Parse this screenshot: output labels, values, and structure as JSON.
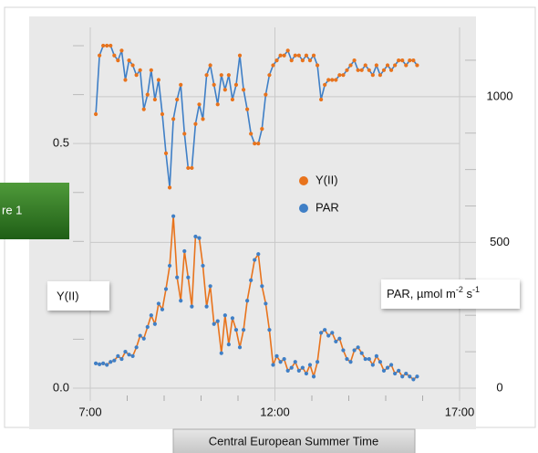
{
  "tab_label": "re 1",
  "chart_data": {
    "type": "line",
    "xlabel": "Central European Summer Time",
    "ylabel": "Y(II)",
    "y2label": [
      "PAR, µmol m",
      "-2",
      " s",
      "-1"
    ],
    "xlim": [
      7,
      17
    ],
    "xticks": [
      {
        "value": 7,
        "label": "7:00"
      },
      {
        "value": 12,
        "label": "12:00"
      },
      {
        "value": 17,
        "label": "17:00"
      }
    ],
    "xminorticks": [
      8,
      9,
      10,
      11,
      13,
      14,
      15,
      16
    ],
    "ylim": [
      0,
      0.715
    ],
    "yticks": [
      {
        "value": 0,
        "label": "0.0"
      },
      0.5
    ],
    "yminorticks": [
      0.1,
      0.2,
      0.3,
      0.4,
      0.6,
      0.7
    ],
    "y2lim": [
      0,
      1200
    ],
    "y2ticks": [
      0,
      500,
      1000
    ],
    "y2minorticks": [
      125,
      250,
      375,
      625,
      750,
      875,
      1125
    ],
    "grid": true,
    "x": [
      7.15,
      7.25,
      7.35,
      7.45,
      7.55,
      7.65,
      7.75,
      7.85,
      7.95,
      8.05,
      8.15,
      8.25,
      8.35,
      8.45,
      8.55,
      8.65,
      8.75,
      8.85,
      8.95,
      9.05,
      9.15,
      9.25,
      9.35,
      9.45,
      9.55,
      9.65,
      9.75,
      9.85,
      9.95,
      10.05,
      10.15,
      10.25,
      10.35,
      10.45,
      10.55,
      10.65,
      10.75,
      10.85,
      10.95,
      11.05,
      11.15,
      11.25,
      11.35,
      11.45,
      11.55,
      11.65,
      11.75,
      11.85,
      11.95,
      12.05,
      12.15,
      12.25,
      12.35,
      12.45,
      12.55,
      12.65,
      12.75,
      12.85,
      12.95,
      13.05,
      13.15,
      13.25,
      13.35,
      13.45,
      13.55,
      13.65,
      13.75,
      13.85,
      13.95,
      14.05,
      14.15,
      14.25,
      14.35,
      14.45,
      14.55,
      14.65,
      14.75,
      14.85,
      14.95,
      15.05,
      15.15,
      15.25,
      15.35,
      15.45,
      15.55,
      15.65,
      15.75,
      15.85
    ],
    "series": [
      {
        "name": "Y(II)",
        "color": "#e8731c",
        "line_color": "#3f7fc6",
        "values": [
          0.56,
          0.68,
          0.7,
          0.7,
          0.7,
          0.68,
          0.67,
          0.69,
          0.63,
          0.67,
          0.66,
          0.64,
          0.65,
          0.57,
          0.6,
          0.65,
          0.59,
          0.63,
          0.56,
          0.48,
          0.41,
          0.55,
          0.59,
          0.62,
          0.52,
          0.45,
          0.45,
          0.54,
          0.58,
          0.55,
          0.64,
          0.66,
          0.62,
          0.58,
          0.64,
          0.61,
          0.64,
          0.59,
          0.62,
          0.68,
          0.61,
          0.57,
          0.52,
          0.5,
          0.5,
          0.53,
          0.6,
          0.64,
          0.66,
          0.67,
          0.68,
          0.68,
          0.69,
          0.67,
          0.68,
          0.68,
          0.67,
          0.68,
          0.67,
          0.68,
          0.66,
          0.59,
          0.62,
          0.63,
          0.63,
          0.63,
          0.64,
          0.64,
          0.65,
          0.66,
          0.67,
          0.65,
          0.65,
          0.66,
          0.65,
          0.64,
          0.66,
          0.64,
          0.65,
          0.66,
          0.65,
          0.66,
          0.67,
          0.67,
          0.66,
          0.67,
          0.67,
          0.66
        ]
      },
      {
        "name": "PAR",
        "color": "#3f7fc6",
        "line_color": "#e8731c",
        "axis": "y2",
        "values": [
          85,
          82,
          85,
          80,
          90,
          95,
          110,
          100,
          125,
          115,
          110,
          140,
          180,
          170,
          210,
          250,
          220,
          290,
          270,
          340,
          420,
          590,
          380,
          300,
          470,
          380,
          280,
          520,
          515,
          420,
          280,
          350,
          220,
          230,
          120,
          250,
          150,
          240,
          200,
          140,
          200,
          300,
          370,
          440,
          460,
          350,
          290,
          200,
          80,
          110,
          90,
          100,
          60,
          70,
          90,
          60,
          70,
          50,
          80,
          40,
          90,
          190,
          200,
          180,
          190,
          160,
          170,
          130,
          100,
          90,
          130,
          140,
          120,
          100,
          100,
          80,
          110,
          90,
          60,
          70,
          80,
          50,
          60,
          40,
          50,
          40,
          30,
          40
        ]
      }
    ]
  }
}
